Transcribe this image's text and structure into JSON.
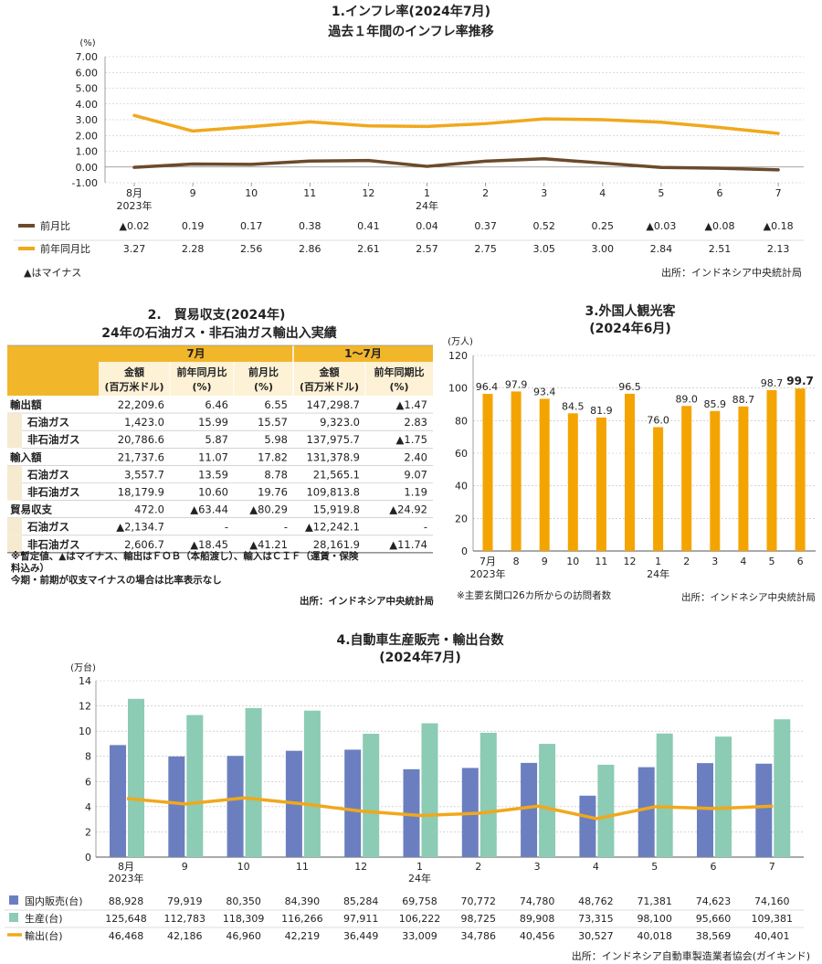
{
  "colors": {
    "brown": "#6b4a2b",
    "gold": "#f0a81c",
    "orange": "#f4a400",
    "blue": "#6b7fc0",
    "teal": "#8ccbb4",
    "header_yellow": "#f2b62b",
    "header_light": "#fdf1d6",
    "row_light": "#f6ead0",
    "grid": "#bbbbbb"
  },
  "chart_data": [
    {
      "type": "line",
      "title": "1.インフレ率(2024年7月)",
      "subtitle": "過去１年間のインフレ率推移",
      "unit": "(%)",
      "ylim": [
        -1,
        7
      ],
      "yticks": [
        "7.00",
        "6.00",
        "5.00",
        "4.00",
        "3.00",
        "2.00",
        "1.00",
        "0.00",
        "-1.00"
      ],
      "categories": [
        "8月",
        "9",
        "10",
        "11",
        "12",
        "1",
        "2",
        "3",
        "4",
        "5",
        "6",
        "7"
      ],
      "category_years": [
        "2023年",
        "",
        "",
        "",
        "",
        "24年",
        "",
        "",
        "",
        "",
        "",
        ""
      ],
      "series": [
        {
          "name": "前月比",
          "values": [
            -0.02,
            0.19,
            0.17,
            0.38,
            0.41,
            0.04,
            0.37,
            0.52,
            0.25,
            -0.03,
            -0.08,
            -0.18
          ],
          "labels": [
            "▲0.02",
            "0.19",
            "0.17",
            "0.38",
            "0.41",
            "0.04",
            "0.37",
            "0.52",
            "0.25",
            "▲0.03",
            "▲0.08",
            "▲0.18"
          ]
        },
        {
          "name": "前年同月比",
          "values": [
            3.27,
            2.28,
            2.56,
            2.86,
            2.61,
            2.57,
            2.75,
            3.05,
            3.0,
            2.84,
            2.51,
            2.13
          ],
          "labels": [
            "3.27",
            "2.28",
            "2.56",
            "2.86",
            "2.61",
            "2.57",
            "2.75",
            "3.05",
            "3.00",
            "2.84",
            "2.51",
            "2.13"
          ]
        }
      ],
      "note": "▲はマイナス",
      "source": "出所：インドネシア中央統計局"
    },
    {
      "type": "table",
      "title": "2.　貿易収支(2024年)",
      "subtitle": "24年の石油ガス・非石油ガス輸出入実績",
      "group_headers": [
        "7月",
        "1～7月"
      ],
      "columns": [
        "金額\n(百万米ドル)",
        "前年同月比\n(%)",
        "前月比\n(%)",
        "金額\n(百万米ドル)",
        "前年同期比\n(%)"
      ],
      "rows": [
        {
          "label": "輸出額",
          "sub": false,
          "cells": [
            "22,209.6",
            "6.46",
            "6.55",
            "147,298.7",
            "▲1.47"
          ]
        },
        {
          "label": "石油ガス",
          "sub": true,
          "cells": [
            "1,423.0",
            "15.99",
            "15.57",
            "9,323.0",
            "2.83"
          ]
        },
        {
          "label": "非石油ガス",
          "sub": true,
          "cells": [
            "20,786.6",
            "5.87",
            "5.98",
            "137,975.7",
            "▲1.75"
          ]
        },
        {
          "label": "輸入額",
          "sub": false,
          "cells": [
            "21,737.6",
            "11.07",
            "17.82",
            "131,378.9",
            "2.40"
          ]
        },
        {
          "label": "石油ガス",
          "sub": true,
          "cells": [
            "3,557.7",
            "13.59",
            "8.78",
            "21,565.1",
            "9.07"
          ]
        },
        {
          "label": "非石油ガス",
          "sub": true,
          "cells": [
            "18,179.9",
            "10.60",
            "19.76",
            "109,813.8",
            "1.19"
          ]
        },
        {
          "label": "貿易収支",
          "sub": false,
          "cells": [
            "472.0",
            "▲63.44",
            "▲80.29",
            "15,919.8",
            "▲24.92"
          ]
        },
        {
          "label": "石油ガス",
          "sub": true,
          "cells": [
            "▲2,134.7",
            "-",
            "-",
            "▲12,242.1",
            "-"
          ]
        },
        {
          "label": "非石油ガス",
          "sub": true,
          "cells": [
            "2,606.7",
            "▲18.45",
            "▲41.21",
            "28,161.9",
            "▲11.74"
          ]
        }
      ],
      "notes": [
        "※暫定値、▲はマイナス、輸出はＦＯＢ（本船渡し）、輸入はＣＩＦ（運賃・保険",
        "料込み）",
        "今期・前期が収支マイナスの場合は比率表示なし"
      ],
      "source": "出所：インドネシア中央統計局"
    },
    {
      "type": "bar",
      "title": "3.外国人観光客",
      "subtitle": "(2024年6月)",
      "unit": "(万人)",
      "ylim": [
        0,
        120
      ],
      "yticks": [
        "120",
        "100",
        "80",
        "60",
        "40",
        "20",
        "0"
      ],
      "categories": [
        "7月",
        "8",
        "9",
        "10",
        "11",
        "12",
        "1",
        "2",
        "3",
        "4",
        "5",
        "6"
      ],
      "category_years": [
        "2023年",
        "",
        "",
        "",
        "",
        "",
        "24年",
        "",
        "",
        "",
        "",
        ""
      ],
      "values": [
        96.4,
        97.9,
        93.4,
        84.5,
        81.9,
        96.5,
        76.0,
        89.0,
        85.9,
        88.7,
        98.7,
        99.7
      ],
      "labels": [
        "96.4",
        "97.9",
        "93.4",
        "84.5",
        "81.9",
        "96.5",
        "76.0",
        "89.0",
        "85.9",
        "88.7",
        "98.7",
        "99.7"
      ],
      "note": "※主要玄関口26カ所からの訪問者数",
      "source": "出所：インドネシア中央統計局"
    },
    {
      "type": "bar",
      "title": "4.自動車生産販売・輸出台数",
      "subtitle": "(2024年7月)",
      "unit": "(万台)",
      "ylim": [
        0,
        14
      ],
      "yticks": [
        "14",
        "12",
        "10",
        "8",
        "6",
        "4",
        "2",
        "0"
      ],
      "categories": [
        "8月",
        "9",
        "10",
        "11",
        "12",
        "1",
        "2",
        "3",
        "4",
        "5",
        "6",
        "7"
      ],
      "category_years": [
        "2023年",
        "",
        "",
        "",
        "",
        "24年",
        "",
        "",
        "",
        "",
        "",
        ""
      ],
      "series": [
        {
          "name": "国内販売(台)",
          "values": [
            88928,
            79919,
            80350,
            84390,
            85284,
            69758,
            70772,
            74780,
            48762,
            71381,
            74623,
            74160
          ],
          "labels": [
            "88,928",
            "79,919",
            "80,350",
            "84,390",
            "85,284",
            "69,758",
            "70,772",
            "74,780",
            "48,762",
            "71,381",
            "74,623",
            "74,160"
          ]
        },
        {
          "name": "生産(台)",
          "values": [
            125648,
            112783,
            118309,
            116266,
            97911,
            106222,
            98725,
            89908,
            73315,
            98100,
            95660,
            109381
          ],
          "labels": [
            "125,648",
            "112,783",
            "118,309",
            "116,266",
            "97,911",
            "106,222",
            "98,725",
            "89,908",
            "73,315",
            "98,100",
            "95,660",
            "109,381"
          ]
        },
        {
          "name": "輸出(台)",
          "values": [
            46468,
            42186,
            46960,
            42219,
            36449,
            33009,
            34786,
            40456,
            30527,
            40018,
            38569,
            40401
          ],
          "labels": [
            "46,468",
            "42,186",
            "46,960",
            "42,219",
            "36,449",
            "33,009",
            "34,786",
            "40,456",
            "30,527",
            "40,018",
            "38,569",
            "40,401"
          ]
        }
      ],
      "source": "出所：インドネシア自動車製造業者協会(ガイキンド)"
    }
  ]
}
